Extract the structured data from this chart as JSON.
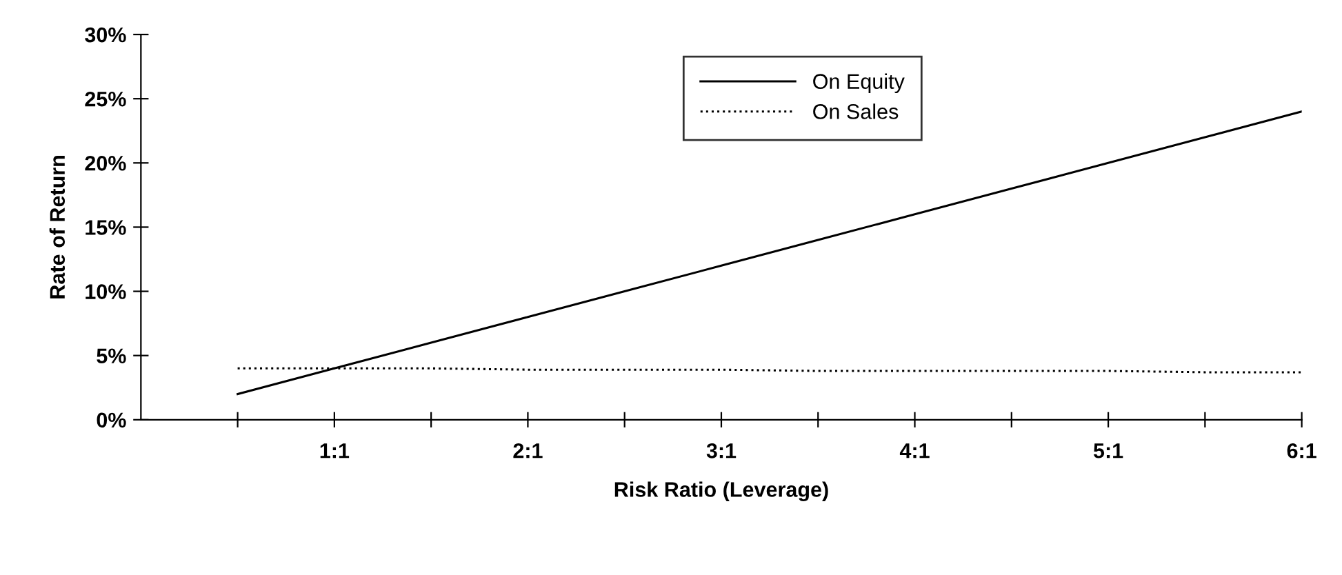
{
  "chart_data": {
    "type": "line",
    "xlabel": "Risk Ratio (Leverage)",
    "ylabel": "Rate of Return",
    "categories": [
      null,
      "1:1",
      null,
      "2:1",
      null,
      "3:1",
      null,
      "4:1",
      null,
      "5:1",
      null,
      "6:1"
    ],
    "series": [
      {
        "name": "On Equity",
        "color": "#000000",
        "line_style": "solid",
        "values": [
          2,
          4,
          6,
          8,
          10,
          12,
          14,
          16,
          18,
          20,
          22,
          24
        ]
      },
      {
        "name": "On Sales",
        "color": "#000000",
        "line_style": "dotted",
        "values": [
          4,
          4,
          4,
          3.9,
          3.9,
          3.9,
          3.8,
          3.8,
          3.8,
          3.8,
          3.7,
          3.7
        ]
      }
    ],
    "ylim": [
      0,
      30
    ],
    "yticks": [
      {
        "value": 0,
        "label": "0%"
      },
      {
        "value": 5,
        "label": "5%"
      },
      {
        "value": 10,
        "label": "10%"
      },
      {
        "value": 15,
        "label": "15%"
      },
      {
        "value": 20,
        "label": "20%"
      },
      {
        "value": 25,
        "label": "25%"
      },
      {
        "value": 30,
        "label": "30%"
      }
    ],
    "grid": false,
    "legend": "top",
    "marker": "none"
  }
}
